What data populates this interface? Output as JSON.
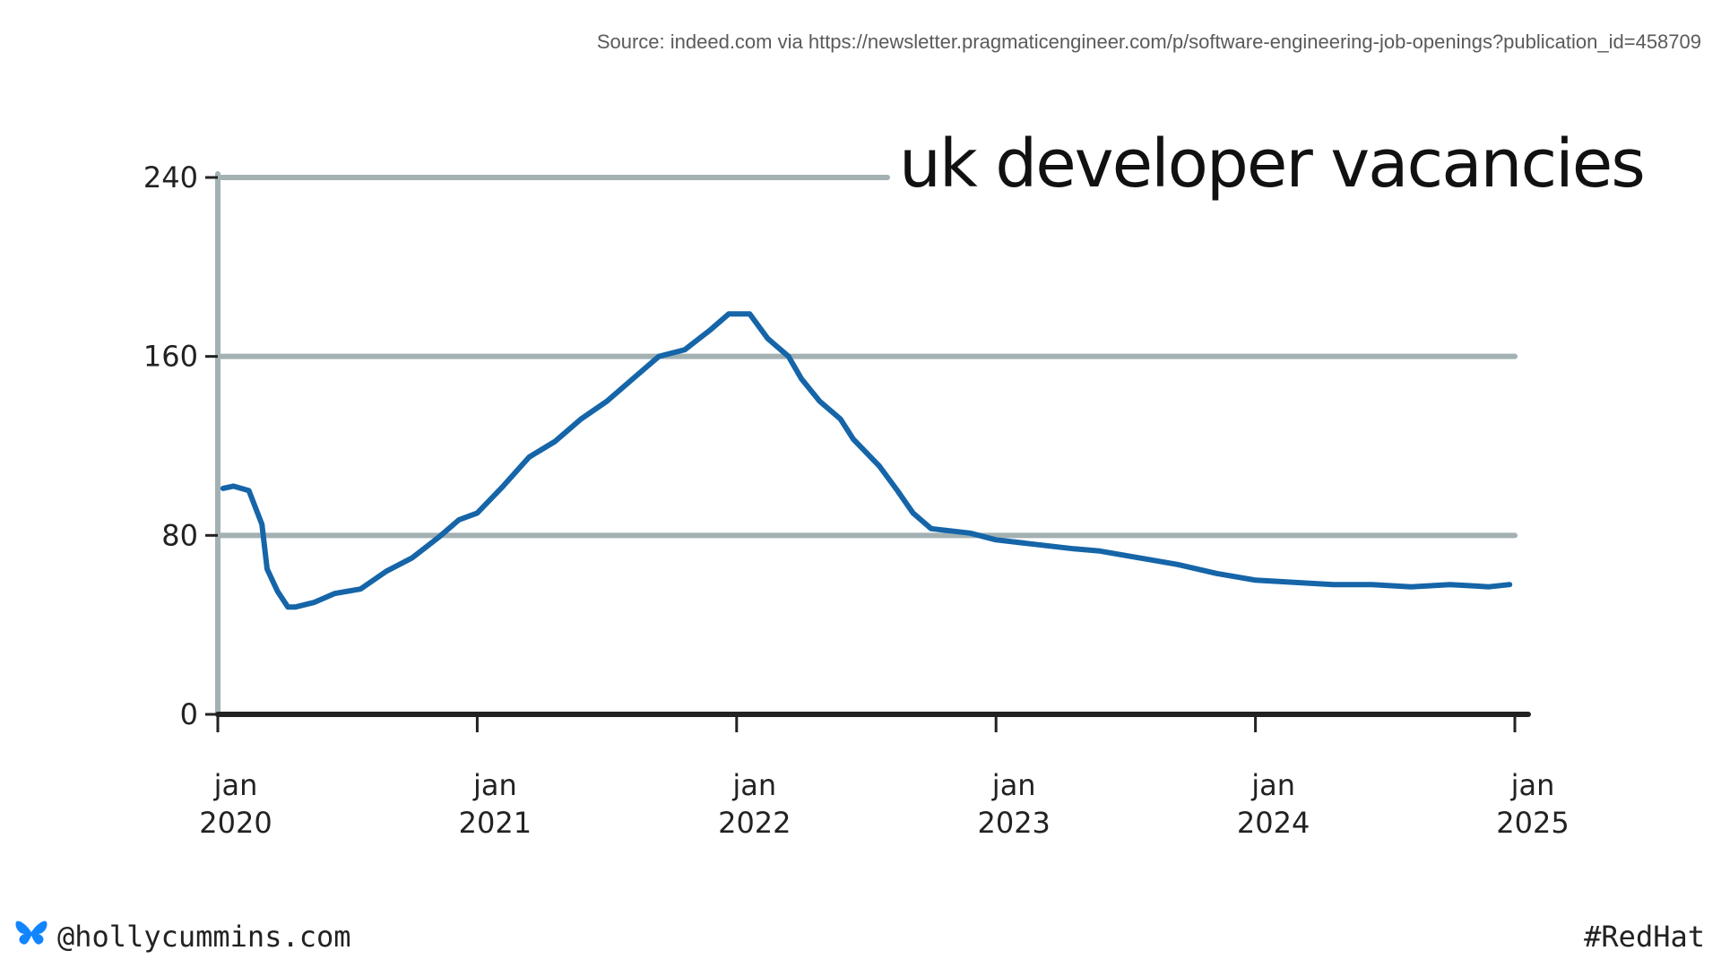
{
  "source": "Source: indeed.com via https://newsletter.pragmaticengineer.com/p/software-engineering-job-openings?publication_id=458709",
  "footer": {
    "handle": "@hollycummins.com",
    "hashtag": "#RedHat",
    "icon": "butterfly-icon"
  },
  "colors": {
    "line": "#1565a8",
    "grid": "#a3b1b3",
    "axis": "#222222",
    "butterfly": "#1185fe"
  },
  "chart_data": {
    "type": "line",
    "title": "uk developer vacancies",
    "xlabel": "",
    "ylabel": "",
    "ylim": [
      0,
      240
    ],
    "xlim": [
      2020.0,
      2025.0
    ],
    "yticks": [
      0,
      80,
      160,
      240
    ],
    "ytick_labels": [
      "0",
      "80",
      "160",
      "240"
    ],
    "xticks": [
      {
        "x": 2020.0,
        "label": [
          "jan",
          "2020"
        ]
      },
      {
        "x": 2021.0,
        "label": [
          "jan",
          "2021"
        ]
      },
      {
        "x": 2022.0,
        "label": [
          "jan",
          "2022"
        ]
      },
      {
        "x": 2023.0,
        "label": [
          "jan",
          "2023"
        ]
      },
      {
        "x": 2024.0,
        "label": [
          "jan",
          "2024"
        ]
      },
      {
        "x": 2025.0,
        "label": [
          "jan",
          "2025"
        ]
      }
    ],
    "grid": true,
    "series": [
      {
        "name": "uk developer vacancies",
        "x": [
          2020.02,
          2020.06,
          2020.12,
          2020.17,
          2020.19,
          2020.23,
          2020.27,
          2020.3,
          2020.37,
          2020.45,
          2020.55,
          2020.65,
          2020.75,
          2020.85,
          2020.93,
          2021.0,
          2021.1,
          2021.2,
          2021.3,
          2021.4,
          2021.5,
          2021.6,
          2021.7,
          2021.8,
          2021.9,
          2021.97,
          2022.05,
          2022.12,
          2022.2,
          2022.25,
          2022.32,
          2022.4,
          2022.45,
          2022.55,
          2022.62,
          2022.68,
          2022.75,
          2022.9,
          2023.0,
          2023.15,
          2023.3,
          2023.4,
          2023.55,
          2023.7,
          2023.85,
          2024.0,
          2024.15,
          2024.3,
          2024.45,
          2024.6,
          2024.75,
          2024.9,
          2024.98
        ],
        "values": [
          101,
          102,
          100,
          85,
          65,
          55,
          48,
          48,
          50,
          54,
          56,
          64,
          70,
          79,
          87,
          90,
          102,
          115,
          122,
          132,
          140,
          150,
          160,
          163,
          172,
          179,
          179,
          168,
          160,
          150,
          140,
          132,
          123,
          111,
          100,
          90,
          83,
          81,
          78,
          76,
          74,
          73,
          70,
          67,
          63,
          60,
          59,
          58,
          58,
          57,
          58,
          57,
          58
        ]
      }
    ]
  }
}
